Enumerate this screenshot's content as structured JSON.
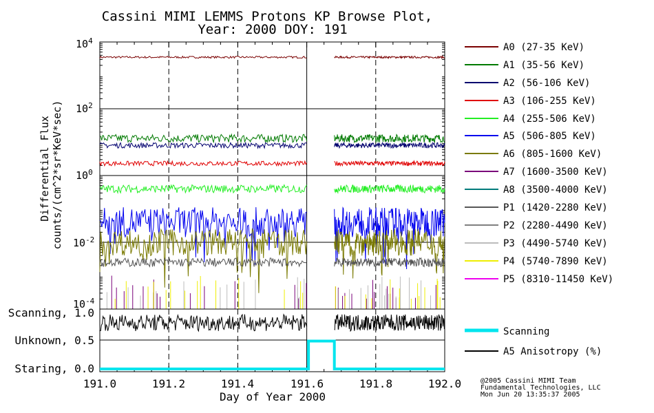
{
  "chart_data": {
    "type": "line",
    "title": [
      "Cassini MIMI LEMMS Protons KP Browse Plot,",
      "Year: 2000 DOY: 191"
    ],
    "xlabel": "Day of Year 2000",
    "ylabel": [
      "Differential Flux",
      "counts/(cm^2*sr*KeV*sec)"
    ],
    "xlim": [
      191.0,
      192.0
    ],
    "x_ticks": [
      "191.0",
      "191.2",
      "191.4",
      "191.6",
      "191.8",
      "192.0"
    ],
    "upper_panel": {
      "scale": "log",
      "ylim": [
        0.0001,
        10000
      ],
      "y_ticks": [
        {
          "base": "10",
          "exp": "4"
        },
        {
          "base": "10",
          "exp": "2"
        },
        {
          "base": "10",
          "exp": "0"
        },
        {
          "base": "10",
          "exp": "-2"
        },
        {
          "base": "10",
          "exp": "-4"
        }
      ],
      "data_gap": [
        191.6,
        191.68
      ],
      "series": [
        {
          "name": "A0 (27-35 KeV)",
          "color": "#7a0000",
          "typical": 3500
        },
        {
          "name": "A1 (35-56 KeV)",
          "color": "#007a00",
          "typical": 13
        },
        {
          "name": "A2 (56-106 KeV)",
          "color": "#00006e",
          "typical": 8
        },
        {
          "name": "A3 (106-255 KeV)",
          "color": "#e00000",
          "typical": 2.3
        },
        {
          "name": "A4 (255-506 KeV)",
          "color": "#22ee22",
          "typical": 0.4
        },
        {
          "name": "A5 (506-805 KeV)",
          "color": "#0000ee",
          "typical": 0.04
        },
        {
          "name": "A6 (805-1600 KeV)",
          "color": "#7a7a00",
          "typical": 0.01
        },
        {
          "name": "A7 (1600-3500 KeV)",
          "color": "#7a007a",
          "typical": 0.0002
        },
        {
          "name": "A8 (3500-4000 KeV)",
          "color": "#007a7a",
          "typical": null
        },
        {
          "name": "P1 (1420-2280 KeV)",
          "color": "#555555",
          "typical": 0.0025
        },
        {
          "name": "P2 (2280-4490 KeV)",
          "color": "#7f7f7f",
          "typical": null
        },
        {
          "name": "P3 (4490-5740 KeV)",
          "color": "#bbbbbb",
          "typical": 0.0002
        },
        {
          "name": "P4 (5740-7890 KeV)",
          "color": "#eeee00",
          "typical": 0.0002
        },
        {
          "name": "P5 (8310-11450 KeV)",
          "color": "#ee00ee",
          "typical": null
        }
      ]
    },
    "lower_panel": {
      "ylim": [
        0.0,
        1.0
      ],
      "y_ticks": [
        "Scanning, 1.0",
        "Unknown, 0.5",
        "Staring, 0.0"
      ],
      "series": [
        {
          "name": "Scanning",
          "color": "#00e5ee",
          "points": [
            [
              191.0,
              0.0
            ],
            [
              191.605,
              0.0
            ],
            [
              191.605,
              0.5
            ],
            [
              191.68,
              0.5
            ],
            [
              191.68,
              0.0
            ],
            [
              192.0,
              0.0
            ]
          ]
        },
        {
          "name": "A5 Anisotropy (%)",
          "color": "#000000",
          "typical": 0.83
        }
      ]
    }
  },
  "credits": [
    "@2005 Cassini MIMI Team",
    "Fundamental Technologies, LLC",
    "Mon Jun 20 13:35:37 2005"
  ]
}
